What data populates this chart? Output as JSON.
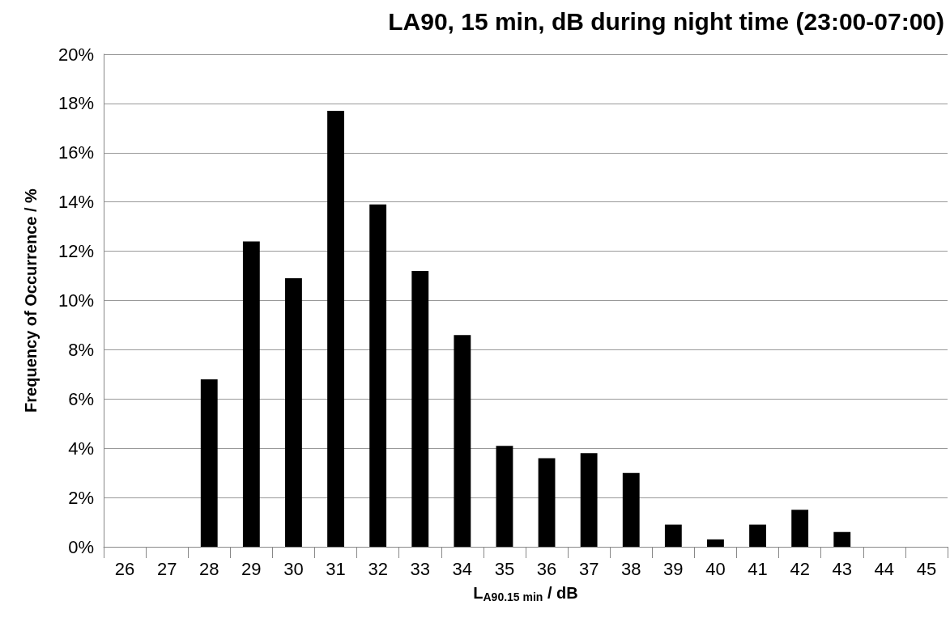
{
  "chart_data": {
    "type": "bar",
    "title": "LA90, 15 min, dB during night time (23:00-07:00)",
    "xlabel": "L$_{A90.15 min}$ / dB",
    "ylabel": "Frequency of Occurrence / %",
    "categories": [
      "26",
      "27",
      "28",
      "29",
      "30",
      "31",
      "32",
      "33",
      "34",
      "35",
      "36",
      "37",
      "38",
      "39",
      "40",
      "41",
      "42",
      "43",
      "44",
      "45"
    ],
    "values": [
      0,
      0,
      6.8,
      12.4,
      10.9,
      17.7,
      13.9,
      11.2,
      8.6,
      4.1,
      3.6,
      3.8,
      3.0,
      0.9,
      0.3,
      0.9,
      1.5,
      0.6,
      0,
      0
    ],
    "color": "#000000",
    "ylim": [
      0,
      20
    ],
    "yticks": [
      {
        "value": 0,
        "label": "0%"
      },
      {
        "value": 2,
        "label": "2%"
      },
      {
        "value": 4,
        "label": "4%"
      },
      {
        "value": 6,
        "label": "6%"
      },
      {
        "value": 8,
        "label": "8%"
      },
      {
        "value": 10,
        "label": "10%"
      },
      {
        "value": 12,
        "label": "12%"
      },
      {
        "value": 14,
        "label": "14%"
      },
      {
        "value": 16,
        "label": "16%"
      },
      {
        "value": 18,
        "label": "18%"
      },
      {
        "value": 20,
        "label": "20%"
      }
    ],
    "grid": "y"
  }
}
